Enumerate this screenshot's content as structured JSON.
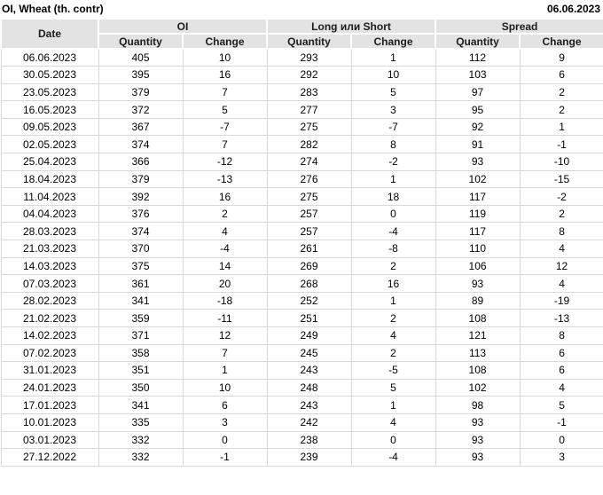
{
  "header": {
    "title": "OI, Wheat (th. contr)",
    "report_date": "06.06.2023"
  },
  "table": {
    "columns": {
      "date": "Date",
      "group_oi": "OI",
      "group_long_short": "Long или Short",
      "group_spread": "Spread",
      "quantity": "Quantity",
      "change": "Change"
    },
    "colors": {
      "change_up": "#1e9c1e",
      "change_down": "#c81717",
      "header_bg": "#e3e3e3",
      "grid_line": "#d9d9d9"
    },
    "rows": [
      {
        "date": "06.06.2023",
        "oi_q": "405",
        "oi_c": "10",
        "oi_d": "up",
        "ls_q": "293",
        "ls_c": "1",
        "ls_d": "up",
        "sp_q": "112",
        "sp_c": "9",
        "sp_d": "up"
      },
      {
        "date": "30.05.2023",
        "oi_q": "395",
        "oi_c": "16",
        "oi_d": "up",
        "ls_q": "292",
        "ls_c": "10",
        "ls_d": "up",
        "sp_q": "103",
        "sp_c": "6",
        "sp_d": "up"
      },
      {
        "date": "23.05.2023",
        "oi_q": "379",
        "oi_c": "7",
        "oi_d": "up",
        "ls_q": "283",
        "ls_c": "5",
        "ls_d": "up",
        "sp_q": "97",
        "sp_c": "2",
        "sp_d": "up"
      },
      {
        "date": "16.05.2023",
        "oi_q": "372",
        "oi_c": "5",
        "oi_d": "up",
        "ls_q": "277",
        "ls_c": "3",
        "ls_d": "up",
        "sp_q": "95",
        "sp_c": "2",
        "sp_d": "up"
      },
      {
        "date": "09.05.2023",
        "oi_q": "367",
        "oi_c": "-7",
        "oi_d": "down",
        "ls_q": "275",
        "ls_c": "-7",
        "ls_d": "down",
        "sp_q": "92",
        "sp_c": "1",
        "sp_d": "up"
      },
      {
        "date": "02.05.2023",
        "oi_q": "374",
        "oi_c": "7",
        "oi_d": "up",
        "ls_q": "282",
        "ls_c": "8",
        "ls_d": "up",
        "sp_q": "91",
        "sp_c": "-1",
        "sp_d": "down"
      },
      {
        "date": "25.04.2023",
        "oi_q": "366",
        "oi_c": "-12",
        "oi_d": "down",
        "ls_q": "274",
        "ls_c": "-2",
        "ls_d": "down",
        "sp_q": "93",
        "sp_c": "-10",
        "sp_d": "down"
      },
      {
        "date": "18.04.2023",
        "oi_q": "379",
        "oi_c": "-13",
        "oi_d": "down",
        "ls_q": "276",
        "ls_c": "1",
        "ls_d": "up",
        "sp_q": "102",
        "sp_c": "-15",
        "sp_d": "down"
      },
      {
        "date": "11.04.2023",
        "oi_q": "392",
        "oi_c": "16",
        "oi_d": "up",
        "ls_q": "275",
        "ls_c": "18",
        "ls_d": "up",
        "sp_q": "117",
        "sp_c": "-2",
        "sp_d": "down"
      },
      {
        "date": "04.04.2023",
        "oi_q": "376",
        "oi_c": "2",
        "oi_d": "up",
        "ls_q": "257",
        "ls_c": "0",
        "ls_d": "up",
        "sp_q": "119",
        "sp_c": "2",
        "sp_d": "up"
      },
      {
        "date": "28.03.2023",
        "oi_q": "374",
        "oi_c": "4",
        "oi_d": "up",
        "ls_q": "257",
        "ls_c": "-4",
        "ls_d": "down",
        "sp_q": "117",
        "sp_c": "8",
        "sp_d": "up"
      },
      {
        "date": "21.03.2023",
        "oi_q": "370",
        "oi_c": "-4",
        "oi_d": "down",
        "ls_q": "261",
        "ls_c": "-8",
        "ls_d": "down",
        "sp_q": "110",
        "sp_c": "4",
        "sp_d": "up"
      },
      {
        "date": "14.03.2023",
        "oi_q": "375",
        "oi_c": "14",
        "oi_d": "up",
        "ls_q": "269",
        "ls_c": "2",
        "ls_d": "up",
        "sp_q": "106",
        "sp_c": "12",
        "sp_d": "up"
      },
      {
        "date": "07.03.2023",
        "oi_q": "361",
        "oi_c": "20",
        "oi_d": "up",
        "ls_q": "268",
        "ls_c": "16",
        "ls_d": "up",
        "sp_q": "93",
        "sp_c": "4",
        "sp_d": "up"
      },
      {
        "date": "28.02.2023",
        "oi_q": "341",
        "oi_c": "-18",
        "oi_d": "down",
        "ls_q": "252",
        "ls_c": "1",
        "ls_d": "up",
        "sp_q": "89",
        "sp_c": "-19",
        "sp_d": "down"
      },
      {
        "date": "21.02.2023",
        "oi_q": "359",
        "oi_c": "-11",
        "oi_d": "down",
        "ls_q": "251",
        "ls_c": "2",
        "ls_d": "up",
        "sp_q": "108",
        "sp_c": "-13",
        "sp_d": "down"
      },
      {
        "date": "14.02.2023",
        "oi_q": "371",
        "oi_c": "12",
        "oi_d": "up",
        "ls_q": "249",
        "ls_c": "4",
        "ls_d": "up",
        "sp_q": "121",
        "sp_c": "8",
        "sp_d": "up"
      },
      {
        "date": "07.02.2023",
        "oi_q": "358",
        "oi_c": "7",
        "oi_d": "up",
        "ls_q": "245",
        "ls_c": "2",
        "ls_d": "up",
        "sp_q": "113",
        "sp_c": "6",
        "sp_d": "up"
      },
      {
        "date": "31.01.2023",
        "oi_q": "351",
        "oi_c": "1",
        "oi_d": "up",
        "ls_q": "243",
        "ls_c": "-5",
        "ls_d": "down",
        "sp_q": "108",
        "sp_c": "6",
        "sp_d": "up"
      },
      {
        "date": "24.01.2023",
        "oi_q": "350",
        "oi_c": "10",
        "oi_d": "up",
        "ls_q": "248",
        "ls_c": "5",
        "ls_d": "up",
        "sp_q": "102",
        "sp_c": "4",
        "sp_d": "up"
      },
      {
        "date": "17.01.2023",
        "oi_q": "341",
        "oi_c": "6",
        "oi_d": "up",
        "ls_q": "243",
        "ls_c": "1",
        "ls_d": "up",
        "sp_q": "98",
        "sp_c": "5",
        "sp_d": "up"
      },
      {
        "date": "10.01.2023",
        "oi_q": "335",
        "oi_c": "3",
        "oi_d": "up",
        "ls_q": "242",
        "ls_c": "4",
        "ls_d": "up",
        "sp_q": "93",
        "sp_c": "-1",
        "sp_d": "down"
      },
      {
        "date": "03.01.2023",
        "oi_q": "332",
        "oi_c": "0",
        "oi_d": "up",
        "ls_q": "238",
        "ls_c": "0",
        "ls_d": "down",
        "sp_q": "93",
        "sp_c": "0",
        "sp_d": "up"
      },
      {
        "date": "27.12.2022",
        "oi_q": "332",
        "oi_c": "-1",
        "oi_d": "down",
        "ls_q": "239",
        "ls_c": "-4",
        "ls_d": "down",
        "sp_q": "93",
        "sp_c": "3",
        "sp_d": "up"
      }
    ]
  }
}
